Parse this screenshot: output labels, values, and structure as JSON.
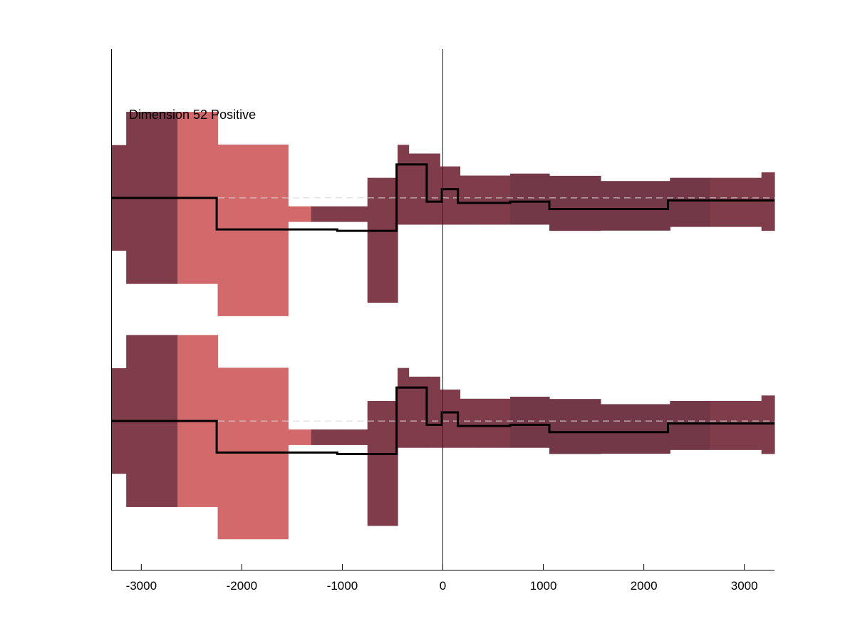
{
  "chart_data": {
    "type": "area",
    "title": "Dimension 52 Positive",
    "xlabel": "",
    "ylabel": "",
    "xlim": [
      -3300,
      3300
    ],
    "ylim": [
      -10.5,
      10.5
    ],
    "x_ticks": [
      -3000,
      -2000,
      -1000,
      0,
      1000,
      2000,
      3000
    ],
    "x_tick_labels": [
      "-3000",
      "-2000",
      "-1000",
      "0",
      "1000",
      "2000",
      "3000"
    ],
    "y_ticks_visible": false,
    "grid": false,
    "legend": "none",
    "vertical_marker_x": 0,
    "baseline_offsets": [
      4.5,
      -4.5
    ],
    "panels": [
      {
        "baseline": 4.5,
        "band_segments": [
          {
            "x0": -3300,
            "x1": -3150,
            "low": -2.13,
            "high": 2.13,
            "color": "#7f3d4b"
          },
          {
            "x0": -3150,
            "x1": -2640,
            "low": -3.47,
            "high": 3.47,
            "color": "#7f3d4b"
          },
          {
            "x0": -2640,
            "x1": -2240,
            "low": -3.47,
            "high": 3.47,
            "color": "#d2696b"
          },
          {
            "x0": -2240,
            "x1": -1540,
            "low": -4.77,
            "high": 2.15,
            "color": "#d2696b"
          },
          {
            "x0": -1540,
            "x1": -1310,
            "low": -0.97,
            "high": -0.34,
            "color": "#d2696b"
          },
          {
            "x0": -1310,
            "x1": -1050,
            "low": -0.97,
            "high": -0.34,
            "color": "#7f3d4b"
          },
          {
            "x0": -1050,
            "x1": -750,
            "low": -0.97,
            "high": -0.34,
            "color": "#7f3d4b"
          },
          {
            "x0": -750,
            "x1": -450,
            "low": -4.23,
            "high": 0.81,
            "color": "#7f3d4b"
          },
          {
            "x0": -450,
            "x1": -340,
            "low": -1.08,
            "high": 2.14,
            "color": "#7f3d4b"
          },
          {
            "x0": -340,
            "x1": -150,
            "low": -1.08,
            "high": 1.79,
            "color": "#7f3d4b"
          },
          {
            "x0": -150,
            "x1": -30,
            "low": -1.08,
            "high": 1.79,
            "color": "#7f3d4b"
          },
          {
            "x0": -30,
            "x1": 170,
            "low": -1.08,
            "high": 1.27,
            "color": "#7f3d4b"
          },
          {
            "x0": 170,
            "x1": 350,
            "low": -1.08,
            "high": 0.9,
            "color": "#7f3d4b"
          },
          {
            "x0": 350,
            "x1": 670,
            "low": -1.08,
            "high": 0.9,
            "color": "#7f3d4b"
          },
          {
            "x0": 670,
            "x1": 1060,
            "low": -1.08,
            "high": 0.98,
            "color": "#723848"
          },
          {
            "x0": 1060,
            "x1": 1570,
            "low": -1.33,
            "high": 0.89,
            "color": "#723848"
          },
          {
            "x0": 1570,
            "x1": 2260,
            "low": -1.32,
            "high": 0.68,
            "color": "#723848"
          },
          {
            "x0": 2260,
            "x1": 2660,
            "low": -1.17,
            "high": 0.81,
            "color": "#723848"
          },
          {
            "x0": 2660,
            "x1": 3170,
            "low": -1.17,
            "high": 0.81,
            "color": "#7f3d4b"
          },
          {
            "x0": 3170,
            "x1": 3300,
            "low": -1.33,
            "high": 1.03,
            "color": "#7f3d4b"
          }
        ],
        "mean_line": [
          [
            -3300,
            0.0
          ],
          [
            -2250,
            0.0
          ],
          [
            -2250,
            -1.27
          ],
          [
            -1050,
            -1.27
          ],
          [
            -1050,
            -1.33
          ],
          [
            -460,
            -1.33
          ],
          [
            -460,
            1.35
          ],
          [
            -160,
            1.35
          ],
          [
            -160,
            -0.15
          ],
          [
            -10,
            -0.15
          ],
          [
            -10,
            0.35
          ],
          [
            150,
            0.35
          ],
          [
            150,
            -0.2
          ],
          [
            670,
            -0.2
          ],
          [
            670,
            -0.15
          ],
          [
            1060,
            -0.15
          ],
          [
            1060,
            -0.45
          ],
          [
            2240,
            -0.45
          ],
          [
            2240,
            -0.1
          ],
          [
            3300,
            -0.1
          ]
        ]
      },
      {
        "baseline": -4.5,
        "band_segments": [
          {
            "x0": -3300,
            "x1": -3150,
            "low": -2.13,
            "high": 2.13,
            "color": "#7f3d4b"
          },
          {
            "x0": -3150,
            "x1": -2640,
            "low": -3.47,
            "high": 3.47,
            "color": "#7f3d4b"
          },
          {
            "x0": -2640,
            "x1": -2240,
            "low": -3.47,
            "high": 3.47,
            "color": "#d2696b"
          },
          {
            "x0": -2240,
            "x1": -1540,
            "low": -4.77,
            "high": 2.15,
            "color": "#d2696b"
          },
          {
            "x0": -1540,
            "x1": -1310,
            "low": -0.97,
            "high": -0.34,
            "color": "#d2696b"
          },
          {
            "x0": -1310,
            "x1": -1050,
            "low": -0.97,
            "high": -0.34,
            "color": "#7f3d4b"
          },
          {
            "x0": -1050,
            "x1": -750,
            "low": -0.97,
            "high": -0.34,
            "color": "#7f3d4b"
          },
          {
            "x0": -750,
            "x1": -450,
            "low": -4.23,
            "high": 0.81,
            "color": "#7f3d4b"
          },
          {
            "x0": -450,
            "x1": -340,
            "low": -1.08,
            "high": 2.14,
            "color": "#7f3d4b"
          },
          {
            "x0": -340,
            "x1": -150,
            "low": -1.08,
            "high": 1.79,
            "color": "#7f3d4b"
          },
          {
            "x0": -150,
            "x1": -30,
            "low": -1.08,
            "high": 1.79,
            "color": "#7f3d4b"
          },
          {
            "x0": -30,
            "x1": 170,
            "low": -1.08,
            "high": 1.27,
            "color": "#7f3d4b"
          },
          {
            "x0": 170,
            "x1": 350,
            "low": -1.08,
            "high": 0.9,
            "color": "#7f3d4b"
          },
          {
            "x0": 350,
            "x1": 670,
            "low": -1.08,
            "high": 0.9,
            "color": "#7f3d4b"
          },
          {
            "x0": 670,
            "x1": 1060,
            "low": -1.08,
            "high": 0.98,
            "color": "#723848"
          },
          {
            "x0": 1060,
            "x1": 1570,
            "low": -1.33,
            "high": 0.89,
            "color": "#723848"
          },
          {
            "x0": 1570,
            "x1": 2260,
            "low": -1.32,
            "high": 0.68,
            "color": "#723848"
          },
          {
            "x0": 2260,
            "x1": 2660,
            "low": -1.17,
            "high": 0.81,
            "color": "#723848"
          },
          {
            "x0": 2660,
            "x1": 3170,
            "low": -1.17,
            "high": 0.81,
            "color": "#7f3d4b"
          },
          {
            "x0": 3170,
            "x1": 3300,
            "low": -1.33,
            "high": 1.03,
            "color": "#7f3d4b"
          }
        ],
        "mean_line": [
          [
            -3300,
            0.0
          ],
          [
            -2250,
            0.0
          ],
          [
            -2250,
            -1.27
          ],
          [
            -1050,
            -1.27
          ],
          [
            -1050,
            -1.33
          ],
          [
            -460,
            -1.33
          ],
          [
            -460,
            1.35
          ],
          [
            -160,
            1.35
          ],
          [
            -160,
            -0.15
          ],
          [
            -10,
            -0.15
          ],
          [
            -10,
            0.35
          ],
          [
            150,
            0.35
          ],
          [
            150,
            -0.2
          ],
          [
            670,
            -0.2
          ],
          [
            670,
            -0.15
          ],
          [
            1060,
            -0.15
          ],
          [
            1060,
            -0.45
          ],
          [
            2240,
            -0.45
          ],
          [
            2240,
            -0.1
          ],
          [
            3300,
            -0.1
          ]
        ]
      }
    ],
    "colors": {
      "band_dark": "#7f3d4b",
      "band_darker": "#723848",
      "band_light": "#d2696b",
      "mean_line": "#000000",
      "baseline_dash": "#d8d8d8",
      "vertical_marker": "#1a1a8c",
      "axis": "#000000"
    }
  }
}
